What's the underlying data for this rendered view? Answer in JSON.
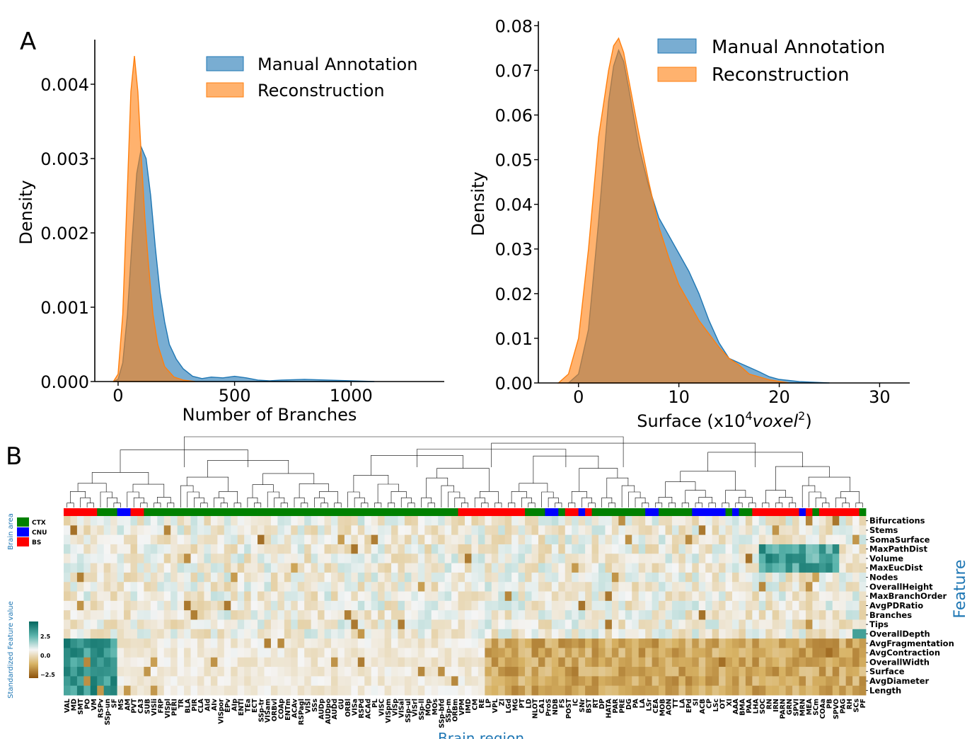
{
  "panel_labels": {
    "a": "A",
    "b": "B"
  },
  "colors": {
    "manual": "#1f77b4",
    "reconstruction": "#ff7f0e",
    "overlap": "#5a7a8f",
    "heat_low": "#8c510a",
    "heat_mid": "#f5f5f5",
    "heat_high": "#01665e",
    "ctx": "#008000",
    "cnu": "#0000ff",
    "bs": "#ff0000",
    "axis_label_blue": "#1f77b4"
  },
  "chart_data": [
    {
      "type": "area",
      "panel": "A-left",
      "xlabel": "Number of Branches",
      "ylabel": "Density",
      "xlim": [
        -100,
        1400
      ],
      "ylim": [
        0,
        0.0046
      ],
      "xticks": [
        0,
        500,
        1000
      ],
      "xtick_labels": [
        "0",
        "500",
        "1000"
      ],
      "yticks": [
        0,
        0.001,
        0.002,
        0.003,
        0.004
      ],
      "ytick_labels": [
        "0.000",
        "0.001",
        "0.002",
        "0.003",
        "0.004"
      ],
      "legend_position": "top-right",
      "grid": false,
      "series": [
        {
          "name": "Manual Annotation",
          "x": [
            -20,
            0,
            20,
            40,
            60,
            80,
            100,
            120,
            140,
            160,
            180,
            200,
            220,
            250,
            280,
            320,
            360,
            400,
            450,
            500,
            550,
            600,
            650,
            700,
            800,
            900,
            1000,
            1100
          ],
          "y": [
            0,
            3e-05,
            0.00025,
            0.0009,
            0.0019,
            0.0028,
            0.00315,
            0.003,
            0.0025,
            0.0018,
            0.0012,
            0.0008,
            0.0005,
            0.0003,
            0.00017,
            7e-05,
            4e-05,
            6e-05,
            5e-05,
            7e-05,
            5e-05,
            2e-05,
            1e-05,
            2e-05,
            3e-05,
            2e-05,
            1e-05,
            0
          ]
        },
        {
          "name": "Reconstruction",
          "x": [
            -20,
            0,
            20,
            40,
            55,
            70,
            85,
            100,
            115,
            130,
            150,
            170,
            200,
            240,
            280,
            330
          ],
          "y": [
            0,
            0.0001,
            0.0009,
            0.0026,
            0.0039,
            0.00438,
            0.0039,
            0.003,
            0.0022,
            0.0016,
            0.0009,
            0.0005,
            0.0002,
            6e-05,
            2e-05,
            0
          ]
        }
      ]
    },
    {
      "type": "area",
      "panel": "A-right",
      "xlabel": "Surface (x10",
      "xlabel_sup": "4",
      "xlabel_unit": "voxel",
      "xlabel_unit_sup": "2",
      "xlabel_close": ")",
      "ylabel": "Density",
      "xlim": [
        -4,
        33
      ],
      "ylim": [
        0,
        0.081
      ],
      "xticks": [
        0,
        10,
        20,
        30
      ],
      "xtick_labels": [
        "0",
        "10",
        "20",
        "30"
      ],
      "yticks": [
        0,
        0.01,
        0.02,
        0.03,
        0.04,
        0.05,
        0.06,
        0.07,
        0.08
      ],
      "ytick_labels": [
        "0.00",
        "0.01",
        "0.02",
        "0.03",
        "0.04",
        "0.05",
        "0.06",
        "0.07",
        "0.08"
      ],
      "legend_position": "top-right",
      "grid": false,
      "series": [
        {
          "name": "Manual Annotation",
          "x": [
            -1,
            0,
            1,
            2,
            3,
            3.5,
            4,
            4.5,
            5,
            6,
            7,
            8,
            9,
            10,
            11,
            12,
            13,
            14,
            15,
            16,
            17,
            18,
            19,
            20,
            22,
            25
          ],
          "y": [
            0,
            0.002,
            0.012,
            0.036,
            0.063,
            0.071,
            0.0745,
            0.072,
            0.066,
            0.053,
            0.044,
            0.037,
            0.033,
            0.029,
            0.025,
            0.02,
            0.014,
            0.009,
            0.0055,
            0.0045,
            0.0035,
            0.0025,
            0.0014,
            0.0008,
            0.0003,
            0
          ]
        },
        {
          "name": "Reconstruction",
          "x": [
            -2,
            -1,
            0,
            1,
            2,
            3,
            3.5,
            4,
            4.5,
            5,
            6,
            7,
            8,
            9,
            10,
            11,
            12,
            13,
            14,
            15,
            16,
            17,
            19,
            21
          ],
          "y": [
            0,
            0.002,
            0.01,
            0.03,
            0.055,
            0.07,
            0.0755,
            0.0772,
            0.074,
            0.068,
            0.056,
            0.045,
            0.035,
            0.028,
            0.022,
            0.018,
            0.014,
            0.011,
            0.008,
            0.0055,
            0.004,
            0.002,
            0.0007,
            0
          ]
        }
      ]
    },
    {
      "type": "heatmap",
      "panel": "B",
      "xlabel": "Brain region",
      "ylabel": "Feature",
      "colorbar_label": "Standardized Feature value",
      "colorbar_ticks": [
        "2.5",
        "0.0",
        "−2.5"
      ],
      "colorbar_range": [
        -3.5,
        3.5
      ],
      "legend_title": "Brain area",
      "legend_entries": [
        {
          "label": "CTX",
          "area": "CTX"
        },
        {
          "label": "CNU",
          "area": "CNU"
        },
        {
          "label": "BS",
          "area": "BS"
        }
      ],
      "features": [
        "Bifurcations",
        "Stems",
        "SomaSurface",
        "MaxPathDist",
        "Volume",
        "MaxEucDist",
        "Nodes",
        "OverallHeight",
        "MaxBranchOrder",
        "AvgPDRatio",
        "Branches",
        "Tips",
        "OverallDepth",
        "AvgFragmentation",
        "AvgContraction",
        "OverallWidth",
        "Surface",
        "AvgDiameter",
        "Length"
      ],
      "regions": [
        "VAL",
        "MD",
        "SMT",
        "PO",
        "VM",
        "RSPv",
        "SSp-un",
        "SF",
        "MS",
        "AM",
        "PVT",
        "CA3",
        "SUB",
        "VISli",
        "FRP",
        "VISpl",
        "PERI",
        "TR",
        "BLA",
        "PIR",
        "CLA",
        "AId",
        "AIv",
        "VISpor",
        "EPv",
        "AIp",
        "ENTl",
        "TEa",
        "ECT",
        "SSp-tr",
        "VISam",
        "ORBvl",
        "COAp",
        "ENTm",
        "ACAv",
        "RSPagl",
        "VISl",
        "SSs",
        "AUDp",
        "AUDpo",
        "AUDd",
        "GU",
        "ORBl",
        "VISa",
        "RSPd",
        "ACAd",
        "PL",
        "VISC",
        "VISpm",
        "VISp",
        "VISal",
        "SSp-ul",
        "VISrl",
        "SSp-ll",
        "MOp",
        "MOs",
        "SSp-bfd",
        "SSp-m",
        "ORBm",
        "VPM",
        "IMD",
        "CM",
        "RE",
        "LP",
        "VPL",
        "ZI",
        "LGd",
        "MG",
        "PT",
        "LD",
        "NLOT",
        "CA1",
        "ProS",
        "NDB",
        "FS",
        "POST",
        "IC",
        "SNr",
        "BST",
        "RT",
        "DP",
        "HATA",
        "PAR",
        "PRE",
        "DG",
        "PA",
        "LA",
        "LSr",
        "CEA",
        "MOB",
        "AON",
        "TT",
        "LA",
        "EPd",
        "SI",
        "ACB",
        "CP",
        "LSc",
        "OT",
        "XI",
        "AAA",
        "BMA",
        "PAA",
        "LHA",
        "SOC",
        "RN",
        "IRN",
        "PARN",
        "GRN",
        "SPVI",
        "MRN",
        "MEA",
        "SCm",
        "COAa",
        "PB",
        "SPVO",
        "PAG",
        "RH",
        "SCs",
        "PF"
      ],
      "region_areas": "BBBBBCCCNNBBCCCCCCCCCCCCCCCCCCCCCCCCCCCCCCCCCCCCCCCCCCCCCCCBBBBBBBBBBCCCNNCBBNBCCCCCCCCNNCCCCCNNNNNCNCCBBBBBBBNBCBBBBBB"
    }
  ]
}
